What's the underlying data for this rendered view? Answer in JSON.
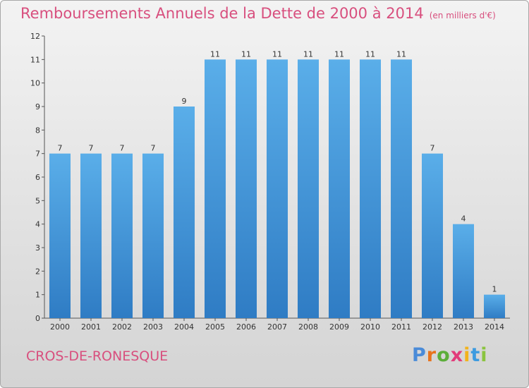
{
  "title": "Remboursements Annuels de la Dette de 2000 à 2014",
  "unit": "(en milliers d'€)",
  "place": "CROS-DE-RONESQUE",
  "brand": {
    "letters": [
      "P",
      "r",
      "o",
      "x",
      "i",
      "t",
      "i"
    ],
    "colors": [
      "#4a8bd8",
      "#e8731c",
      "#5cae3a",
      "#e23b7a",
      "#f2b31c",
      "#3d9be0",
      "#8bc43f"
    ]
  },
  "chart_data": {
    "type": "bar",
    "categories": [
      "2000",
      "2001",
      "2002",
      "2003",
      "2004",
      "2005",
      "2006",
      "2007",
      "2008",
      "2009",
      "2010",
      "2011",
      "2012",
      "2013",
      "2014"
    ],
    "values": [
      7,
      7,
      7,
      7,
      9,
      11,
      11,
      11,
      11,
      11,
      11,
      11,
      7,
      4,
      1
    ],
    "yticks": [
      0,
      1,
      2,
      3,
      4,
      5,
      6,
      7,
      8,
      9,
      10,
      11,
      12
    ],
    "ylim": [
      0,
      12
    ],
    "grid": false,
    "bar_color": "#4a9de0"
  }
}
